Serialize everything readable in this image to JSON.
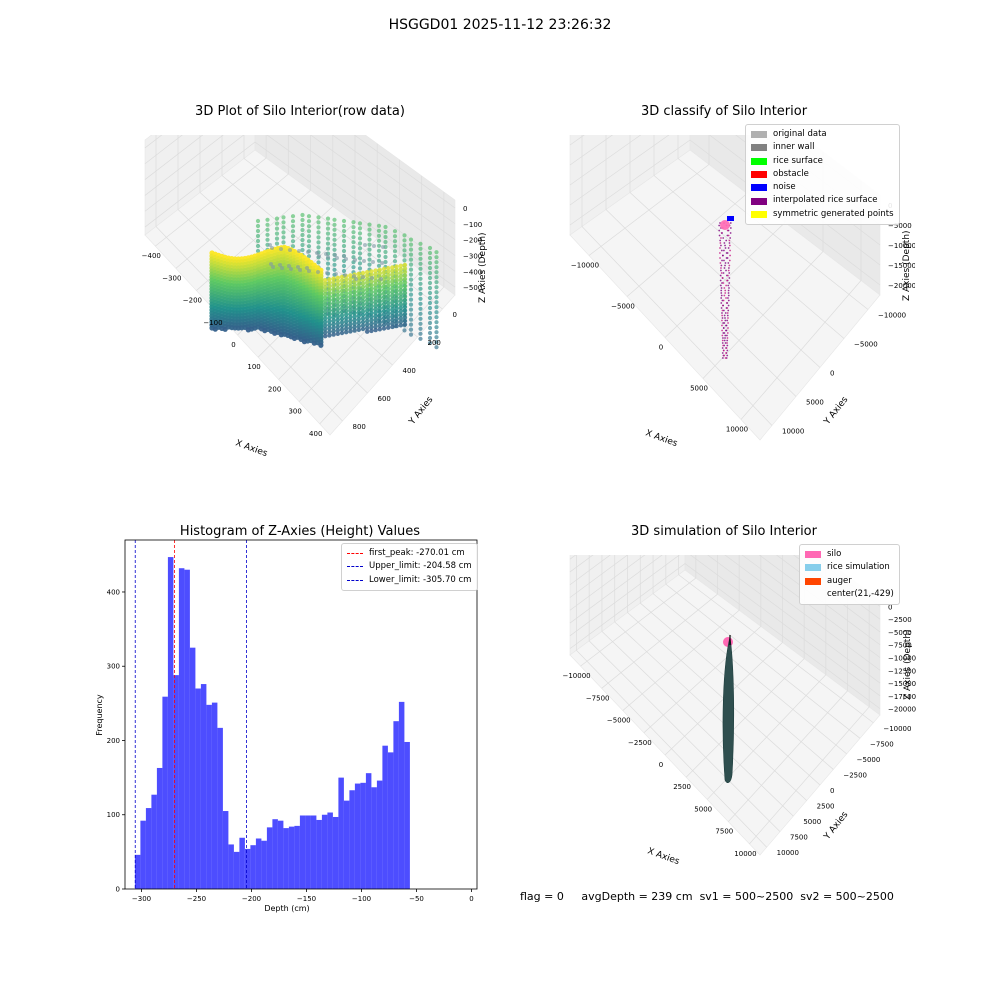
{
  "suptitle": "HSGGD01 2025-11-12 23:26:32",
  "colors": {
    "viridis": [
      "#440154",
      "#3b528b",
      "#21918c",
      "#5ec962",
      "#fde725"
    ],
    "pane": "#f2f2f2",
    "grid": "#dcdcdc",
    "hist_bar": "#4d4dff",
    "peak_line": "#ff0000",
    "limit_line": "#0000cc"
  },
  "panels": {
    "raw": {
      "title": "3D Plot of Silo Interior(row data)",
      "xlabel": "X Axies",
      "ylabel": "Y Axies",
      "zlabel": "Z Axies (Depth)",
      "xticks": [
        "−400",
        "−300",
        "−200",
        "−100",
        "0",
        "100",
        "200",
        "300",
        "400"
      ],
      "yticks": [
        "0",
        "200",
        "400",
        "600",
        "800"
      ],
      "zticks": [
        "0",
        "−100",
        "−200",
        "−300",
        "−400",
        "−500"
      ],
      "colormap": "viridis"
    },
    "classify": {
      "title": "3D classify of Silo Interior",
      "xlabel": "X Axies",
      "ylabel": "Y Axies",
      "zlabel": "Z Axies (Depth)",
      "xticks": [
        "−10000",
        "−5000",
        "0",
        "5000",
        "10000"
      ],
      "yticks": [
        "−10000",
        "−5000",
        "0",
        "5000",
        "10000"
      ],
      "zticks": [
        "0",
        "−5000",
        "−10000",
        "−15000",
        "−20000"
      ],
      "legend": [
        {
          "label": "original data",
          "color": "#b0b0b0"
        },
        {
          "label": "inner wall",
          "color": "#808080"
        },
        {
          "label": "rice surface",
          "color": "#00ff00"
        },
        {
          "label": "obstacle",
          "color": "#ff0000"
        },
        {
          "label": "noise",
          "color": "#0000ff"
        },
        {
          "label": "interpolated rice surface",
          "color": "#800080"
        },
        {
          "label": "symmetric generated points",
          "color": "#ffff00"
        }
      ]
    },
    "simulation": {
      "title": "3D simulation of Silo Interior",
      "xlabel": "X Axies",
      "ylabel": "Y Axies",
      "zlabel": "Z Axies (Depth)",
      "xticks": [
        "−10000",
        "−7500",
        "−5000",
        "−2500",
        "0",
        "2500",
        "5000",
        "7500",
        "10000"
      ],
      "yticks": [
        "−10000",
        "−7500",
        "−5000",
        "−2500",
        "0",
        "2500",
        "5000",
        "7500",
        "10000"
      ],
      "zticks": [
        "0",
        "−2500",
        "−5000",
        "−7500",
        "−10000",
        "−12500",
        "−15000",
        "−17500",
        "−20000"
      ],
      "legend": [
        {
          "label": "silo",
          "color": "#ff69b4"
        },
        {
          "label": "rice simulation",
          "color": "#87ceeb"
        },
        {
          "label": "auger",
          "color": "#ff4500"
        },
        {
          "label": "center(21,-429)",
          "color": ""
        }
      ]
    }
  },
  "status": {
    "flag": "flag = 0",
    "avg_depth": "avgDepth = 239 cm",
    "sv1": "sv1 = 500~2500",
    "sv2": "sv2 = 500~2500"
  },
  "chart_data": [
    {
      "type": "histogram",
      "title": "Histogram of Z-Axies (Height) Values",
      "xlabel": "Depth (cm)",
      "ylabel": "Frequency",
      "xlim": [
        -315,
        5
      ],
      "ylim": [
        0,
        470
      ],
      "xticks": [
        -300,
        -250,
        -200,
        -150,
        -100,
        -50,
        0
      ],
      "yticks": [
        0,
        100,
        200,
        300,
        400
      ],
      "bin_start": -306,
      "bin_width": 5.0,
      "values": [
        46,
        92,
        109,
        127,
        163,
        259,
        447,
        288,
        432,
        430,
        325,
        270,
        276,
        248,
        251,
        217,
        105,
        60,
        50,
        69,
        54,
        59,
        68,
        65,
        83,
        94,
        92,
        82,
        84,
        85,
        99,
        99,
        99,
        93,
        100,
        103,
        97,
        150,
        119,
        133,
        142,
        143,
        156,
        137,
        146,
        193,
        184,
        226,
        252,
        198
      ],
      "grid": false,
      "legend_position": "top-right",
      "vlines": [
        {
          "label": "first_peak: -270.01 cm",
          "x": -270.01,
          "color": "#ff0000"
        },
        {
          "label": "Upper_limit: -204.58 cm",
          "x": -204.58,
          "color": "#0000cc"
        },
        {
          "label": "Lower_limit: -305.70 cm",
          "x": -305.7,
          "color": "#0000cc"
        }
      ]
    }
  ]
}
